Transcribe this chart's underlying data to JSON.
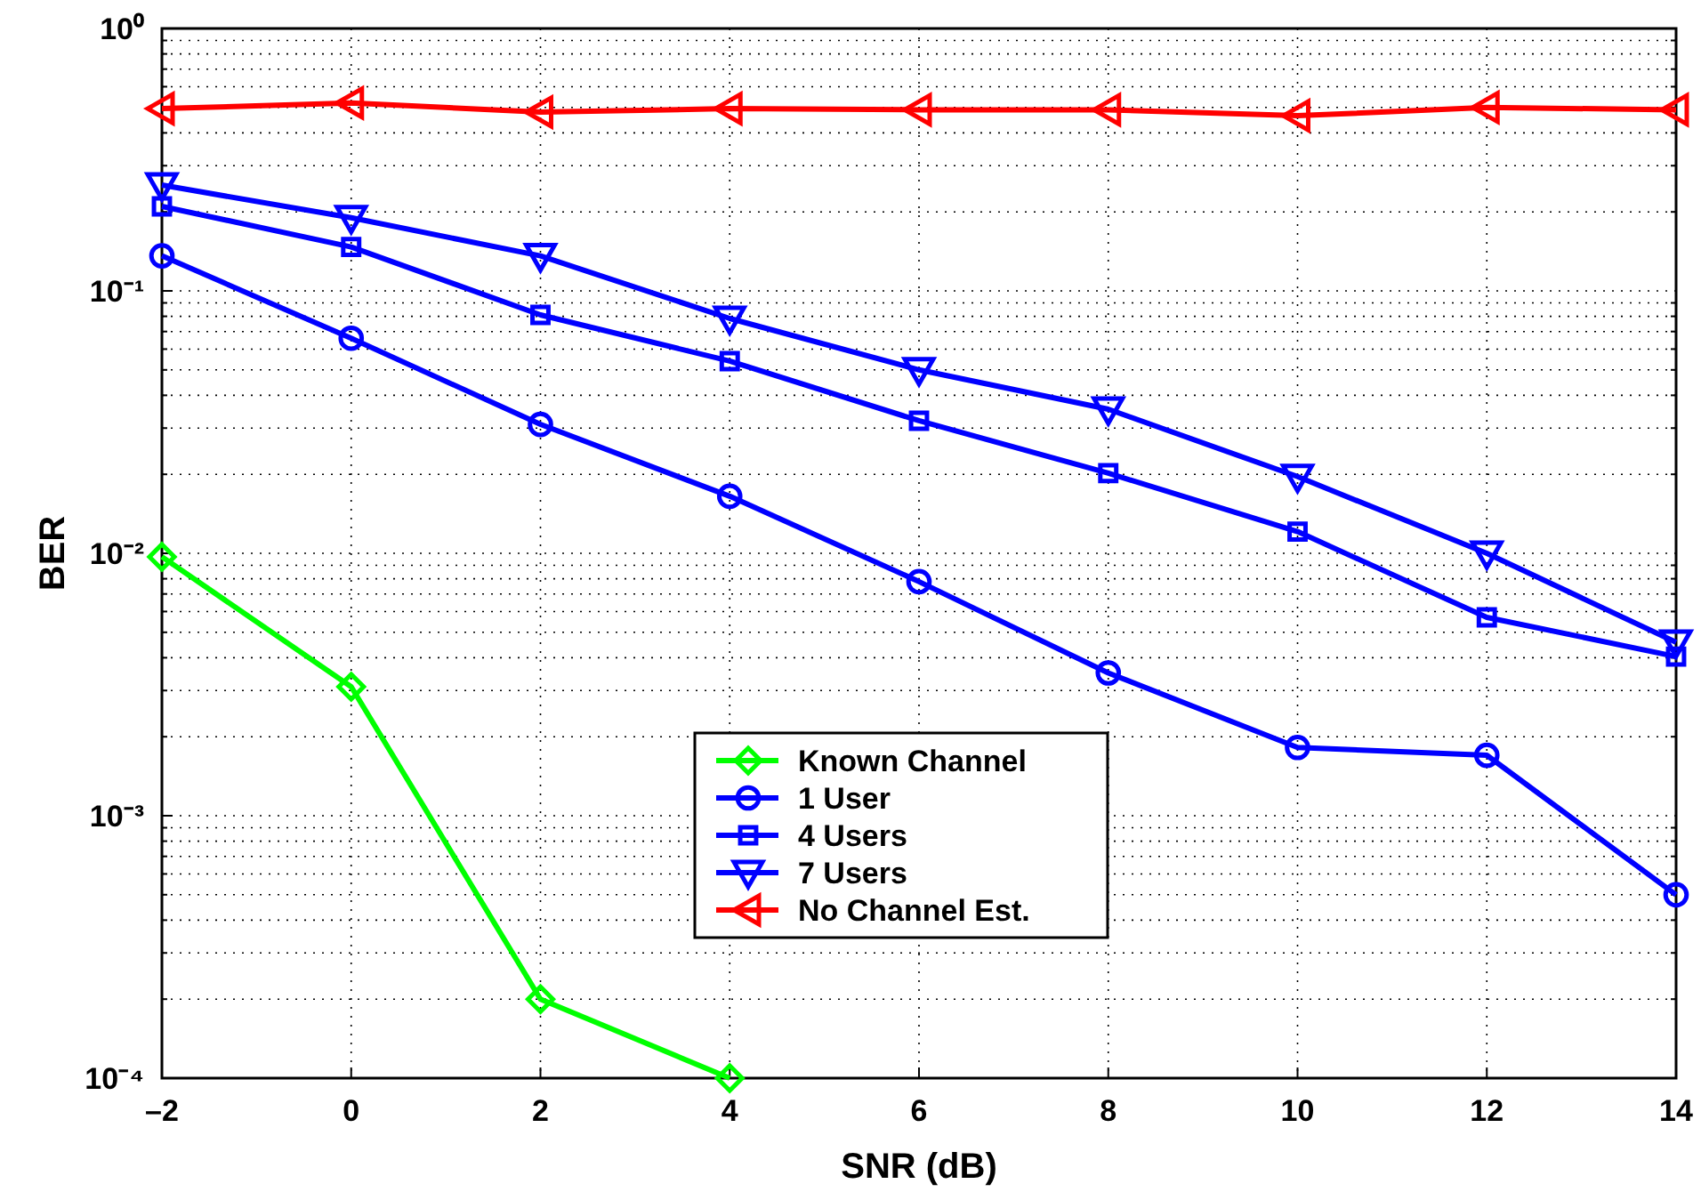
{
  "chart_data": {
    "type": "line",
    "xlabel": "SNR (dB)",
    "ylabel": "BER",
    "log": "y",
    "grid": true,
    "legend": "center",
    "line_style": "solid",
    "x": [
      -2,
      0,
      2,
      4,
      6,
      8,
      10,
      12,
      14
    ],
    "xlim": [
      -2,
      14
    ],
    "xticks": [
      {
        "value": -2,
        "label": "–2"
      },
      0,
      2,
      4,
      6,
      8,
      10,
      12,
      14
    ],
    "ylim": [
      0.0001,
      1
    ],
    "yticks": [
      {
        "value": 0.0001,
        "label": "10⁻⁴"
      },
      {
        "value": 0.001,
        "label": "10⁻³"
      },
      {
        "value": 0.01,
        "label": "10⁻²"
      },
      {
        "value": 0.1,
        "label": "10⁻¹"
      },
      {
        "value": 1,
        "label": "10⁰"
      }
    ],
    "series": [
      {
        "name": "Known Channel",
        "color": "#00ff00",
        "marker": "diamond",
        "values": [
          0.0097,
          0.0031,
          0.0002,
          0.0001,
          null,
          null,
          null,
          null,
          null
        ]
      },
      {
        "name": "1 User",
        "color": "#0000ff",
        "marker": "circle",
        "values": [
          0.136,
          0.066,
          0.031,
          0.0165,
          0.0078,
          0.0035,
          0.00182,
          0.0017,
          0.0005
        ]
      },
      {
        "name": "4 Users",
        "color": "#0000ff",
        "marker": "square",
        "values": [
          0.21,
          0.147,
          0.081,
          0.054,
          0.032,
          0.0202,
          0.0121,
          0.0057,
          0.00404
        ]
      },
      {
        "name": "7 Users",
        "color": "#0000ff",
        "marker": "triangle-down",
        "values": [
          0.253,
          0.19,
          0.136,
          0.0785,
          0.05,
          0.0354,
          0.0196,
          0.01,
          0.00458
        ]
      },
      {
        "name": "No Channel Est.",
        "color": "#ff0000",
        "marker": "triangle-left",
        "values": [
          0.495,
          0.52,
          0.48,
          0.495,
          0.49,
          0.49,
          0.465,
          0.5,
          0.49
        ]
      }
    ]
  }
}
